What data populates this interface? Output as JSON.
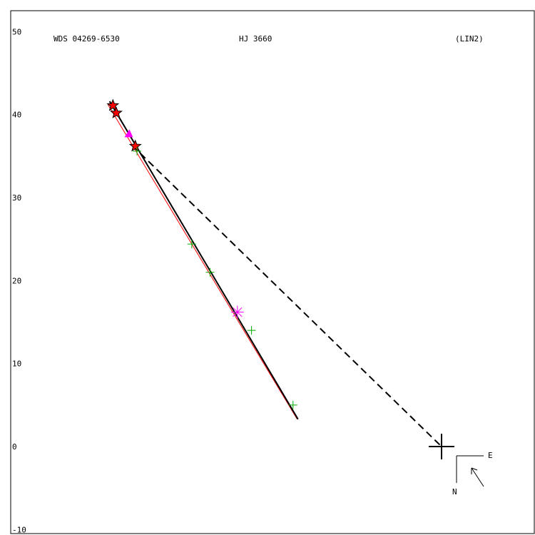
{
  "header": {
    "wds": "WDS 04269-6530",
    "name": "HJ 3660",
    "tag": "(LIN2)"
  },
  "compass": {
    "east": "E",
    "north": "N"
  },
  "chart_data": {
    "type": "scatter",
    "title": "",
    "ylim": [
      -10,
      50
    ],
    "y_ticks": [
      50,
      40,
      30,
      20,
      10,
      0,
      -10
    ],
    "grid": false,
    "primary": {
      "x": 0,
      "y": 0
    },
    "fit_line": {
      "from": {
        "x": 40.0,
        "y": 41.6
      },
      "to": {
        "x": 17.3,
        "y": 3.3
      }
    },
    "reference_line": {
      "from": {
        "x": 40.2,
        "y": 41.2
      },
      "to": {
        "x": 17.4,
        "y": 3.3
      }
    },
    "projection_line": {
      "from": {
        "x": 37.3,
        "y": 36.3
      },
      "to": {
        "x": 0,
        "y": 0
      }
    },
    "series": [
      {
        "marker": "star",
        "color": "#ff0000",
        "points": [
          {
            "x": 39.6,
            "y": 41.1
          },
          {
            "x": 39.2,
            "y": 40.2
          },
          {
            "x": 36.9,
            "y": 36.2
          }
        ]
      },
      {
        "marker": "triangle",
        "color": "#ff00ff",
        "points": [
          {
            "x": 37.7,
            "y": 37.7
          }
        ]
      },
      {
        "marker": "plus",
        "color": "#00aa00",
        "points": [
          {
            "x": 36.7,
            "y": 35.6
          },
          {
            "x": 30.1,
            "y": 24.4
          },
          {
            "x": 27.9,
            "y": 21.0
          },
          {
            "x": 22.9,
            "y": 14.0
          },
          {
            "x": 17.9,
            "y": 5.0
          }
        ]
      },
      {
        "marker": "asterisk",
        "color": "#ff00ff",
        "points": [
          {
            "x": 24.6,
            "y": 16.2
          }
        ]
      }
    ]
  }
}
